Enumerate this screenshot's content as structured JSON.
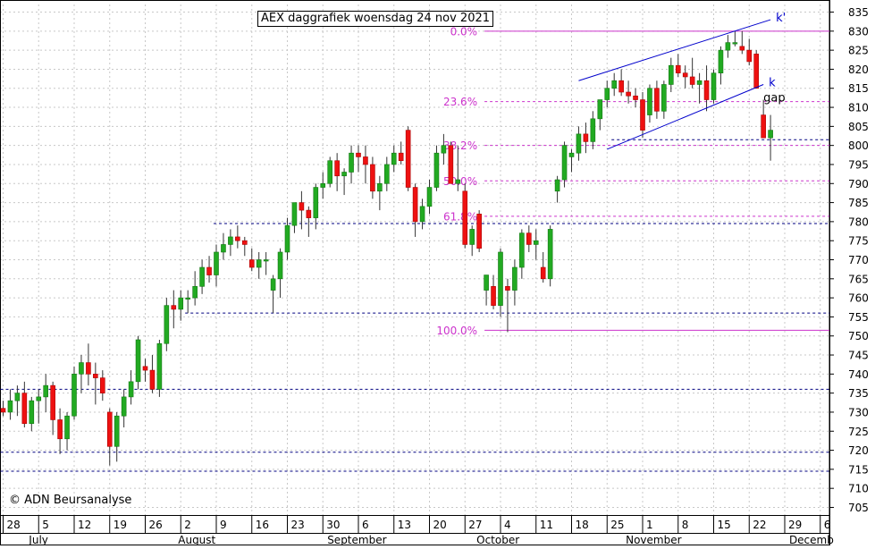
{
  "chart_data": {
    "type": "candlestick",
    "title": "AEX daggrafiek woensdag 24 nov 2021",
    "copyright": "© ADN Beursanalyse",
    "ylim": [
      703,
      837
    ],
    "y_ticks": [
      705,
      710,
      715,
      720,
      725,
      730,
      735,
      740,
      745,
      750,
      755,
      760,
      765,
      770,
      775,
      780,
      785,
      790,
      795,
      800,
      805,
      810,
      815,
      820,
      825,
      830,
      835
    ],
    "x_day_ticks": [
      {
        "label": "28",
        "index": 0
      },
      {
        "label": "5",
        "index": 5
      },
      {
        "label": "12",
        "index": 10
      },
      {
        "label": "19",
        "index": 15
      },
      {
        "label": "26",
        "index": 20
      },
      {
        "label": "2",
        "index": 25
      },
      {
        "label": "9",
        "index": 30
      },
      {
        "label": "16",
        "index": 35
      },
      {
        "label": "23",
        "index": 40
      },
      {
        "label": "30",
        "index": 45
      },
      {
        "label": "6",
        "index": 50
      },
      {
        "label": "13",
        "index": 55
      },
      {
        "label": "20",
        "index": 60
      },
      {
        "label": "27",
        "index": 65
      },
      {
        "label": "4",
        "index": 70
      },
      {
        "label": "11",
        "index": 75
      },
      {
        "label": "18",
        "index": 80
      },
      {
        "label": "25",
        "index": 85
      },
      {
        "label": "1",
        "index": 90
      },
      {
        "label": "8",
        "index": 95
      },
      {
        "label": "15",
        "index": 100
      },
      {
        "label": "22",
        "index": 105
      },
      {
        "label": "29",
        "index": 110
      },
      {
        "label": "6",
        "index": 115
      }
    ],
    "month_labels": [
      {
        "label": "July",
        "index": 4
      },
      {
        "label": "August",
        "index": 25
      },
      {
        "label": "September",
        "index": 46
      },
      {
        "label": "October",
        "index": 67
      },
      {
        "label": "November",
        "index": 88
      },
      {
        "label": "Decemb",
        "index": 111
      }
    ],
    "colors": {
      "up_fill": "#22aa22",
      "down_fill": "#ee1111",
      "up_outline": "#117711",
      "down_outline": "#aa0000",
      "fib": "#cc33cc",
      "support": "#000080",
      "trend": "#0000cc"
    },
    "candles": [
      {
        "o": 731,
        "h": 733,
        "l": 729,
        "c": 730
      },
      {
        "o": 730,
        "h": 736,
        "l": 728,
        "c": 733
      },
      {
        "o": 733,
        "h": 737,
        "l": 729,
        "c": 735
      },
      {
        "o": 735,
        "h": 738,
        "l": 726,
        "c": 727
      },
      {
        "o": 727,
        "h": 734,
        "l": 725,
        "c": 733
      },
      {
        "o": 733,
        "h": 736,
        "l": 727,
        "c": 734
      },
      {
        "o": 734,
        "h": 740,
        "l": 730,
        "c": 737
      },
      {
        "o": 737,
        "h": 738,
        "l": 724,
        "c": 728
      },
      {
        "o": 728,
        "h": 731,
        "l": 719,
        "c": 723
      },
      {
        "o": 723,
        "h": 730,
        "l": 720,
        "c": 729
      },
      {
        "o": 729,
        "h": 742,
        "l": 728,
        "c": 740
      },
      {
        "o": 740,
        "h": 745,
        "l": 735,
        "c": 743
      },
      {
        "o": 743,
        "h": 748,
        "l": 737,
        "c": 740
      },
      {
        "o": 740,
        "h": 743,
        "l": 732,
        "c": 739
      },
      {
        "o": 739,
        "h": 741,
        "l": 733,
        "c": 735
      },
      {
        "o": 730,
        "h": 731,
        "l": 716,
        "c": 721
      },
      {
        "o": 721,
        "h": 730,
        "l": 717,
        "c": 729
      },
      {
        "o": 729,
        "h": 736,
        "l": 726,
        "c": 734
      },
      {
        "o": 734,
        "h": 741,
        "l": 732,
        "c": 738
      },
      {
        "o": 738,
        "h": 750,
        "l": 736,
        "c": 749
      },
      {
        "o": 742,
        "h": 744,
        "l": 738,
        "c": 741
      },
      {
        "o": 741,
        "h": 745,
        "l": 735,
        "c": 736
      },
      {
        "o": 736,
        "h": 749,
        "l": 734,
        "c": 748
      },
      {
        "o": 748,
        "h": 760,
        "l": 746,
        "c": 758
      },
      {
        "o": 758,
        "h": 762,
        "l": 752,
        "c": 757
      },
      {
        "o": 757,
        "h": 762,
        "l": 754,
        "c": 760
      },
      {
        "o": 760,
        "h": 762,
        "l": 756,
        "c": 760
      },
      {
        "o": 760,
        "h": 767,
        "l": 758,
        "c": 763
      },
      {
        "o": 763,
        "h": 770,
        "l": 761,
        "c": 768
      },
      {
        "o": 768,
        "h": 771,
        "l": 764,
        "c": 766
      },
      {
        "o": 766,
        "h": 774,
        "l": 763,
        "c": 772
      },
      {
        "o": 772,
        "h": 777,
        "l": 770,
        "c": 774
      },
      {
        "o": 774,
        "h": 778,
        "l": 771,
        "c": 776
      },
      {
        "o": 776,
        "h": 779,
        "l": 773,
        "c": 775
      },
      {
        "o": 775,
        "h": 776,
        "l": 771,
        "c": 774
      },
      {
        "o": 770,
        "h": 773,
        "l": 767,
        "c": 768
      },
      {
        "o": 768,
        "h": 772,
        "l": 765,
        "c": 770
      },
      {
        "o": 770,
        "h": 772,
        "l": 766,
        "c": 770
      },
      {
        "o": 762,
        "h": 766,
        "l": 756,
        "c": 765
      },
      {
        "o": 765,
        "h": 773,
        "l": 760,
        "c": 772
      },
      {
        "o": 772,
        "h": 781,
        "l": 770,
        "c": 779
      },
      {
        "o": 779,
        "h": 785,
        "l": 777,
        "c": 785
      },
      {
        "o": 785,
        "h": 788,
        "l": 778,
        "c": 783
      },
      {
        "o": 783,
        "h": 784,
        "l": 776,
        "c": 781
      },
      {
        "o": 781,
        "h": 790,
        "l": 778,
        "c": 789
      },
      {
        "o": 789,
        "h": 793,
        "l": 786,
        "c": 790
      },
      {
        "o": 790,
        "h": 797,
        "l": 789,
        "c": 796
      },
      {
        "o": 796,
        "h": 798,
        "l": 788,
        "c": 792
      },
      {
        "o": 792,
        "h": 794,
        "l": 787,
        "c": 793
      },
      {
        "o": 793,
        "h": 800,
        "l": 790,
        "c": 798
      },
      {
        "o": 798,
        "h": 800,
        "l": 793,
        "c": 797
      },
      {
        "o": 797,
        "h": 800,
        "l": 790,
        "c": 795
      },
      {
        "o": 795,
        "h": 797,
        "l": 786,
        "c": 788
      },
      {
        "o": 788,
        "h": 792,
        "l": 783,
        "c": 790
      },
      {
        "o": 790,
        "h": 797,
        "l": 788,
        "c": 795
      },
      {
        "o": 795,
        "h": 800,
        "l": 793,
        "c": 798
      },
      {
        "o": 798,
        "h": 801,
        "l": 795,
        "c": 796
      },
      {
        "o": 804,
        "h": 805,
        "l": 788,
        "c": 789
      },
      {
        "o": 789,
        "h": 790,
        "l": 776,
        "c": 780
      },
      {
        "o": 780,
        "h": 786,
        "l": 778,
        "c": 784
      },
      {
        "o": 784,
        "h": 791,
        "l": 782,
        "c": 789
      },
      {
        "o": 789,
        "h": 800,
        "l": 788,
        "c": 798
      },
      {
        "o": 798,
        "h": 803,
        "l": 795,
        "c": 800
      },
      {
        "o": 800,
        "h": 801,
        "l": 790,
        "c": 790
      },
      {
        "o": 790,
        "h": 800,
        "l": 788,
        "c": 791
      },
      {
        "o": 788,
        "h": 790,
        "l": 773,
        "c": 774
      },
      {
        "o": 774,
        "h": 779,
        "l": 771,
        "c": 778
      },
      {
        "o": 782,
        "h": 783,
        "l": 772,
        "c": 773
      },
      {
        "o": 762,
        "h": 766,
        "l": 758,
        "c": 766
      },
      {
        "o": 763,
        "h": 766,
        "l": 757,
        "c": 758
      },
      {
        "o": 758,
        "h": 773,
        "l": 755,
        "c": 772
      },
      {
        "o": 763,
        "h": 765,
        "l": 751,
        "c": 762
      },
      {
        "o": 762,
        "h": 770,
        "l": 758,
        "c": 768
      },
      {
        "o": 768,
        "h": 778,
        "l": 765,
        "c": 777
      },
      {
        "o": 777,
        "h": 779,
        "l": 772,
        "c": 774
      },
      {
        "o": 774,
        "h": 778,
        "l": 770,
        "c": 775
      },
      {
        "o": 768,
        "h": 772,
        "l": 764,
        "c": 765
      },
      {
        "o": 765,
        "h": 779,
        "l": 763,
        "c": 778
      },
      {
        "o": 788,
        "h": 792,
        "l": 785,
        "c": 791
      },
      {
        "o": 791,
        "h": 801,
        "l": 789,
        "c": 800
      },
      {
        "o": 797,
        "h": 799,
        "l": 793,
        "c": 798
      },
      {
        "o": 798,
        "h": 805,
        "l": 796,
        "c": 803
      },
      {
        "o": 803,
        "h": 806,
        "l": 798,
        "c": 801
      },
      {
        "o": 801,
        "h": 809,
        "l": 799,
        "c": 807
      },
      {
        "o": 807,
        "h": 812,
        "l": 804,
        "c": 812
      },
      {
        "o": 812,
        "h": 817,
        "l": 810,
        "c": 815
      },
      {
        "o": 815,
        "h": 819,
        "l": 813,
        "c": 817
      },
      {
        "o": 817,
        "h": 820,
        "l": 813,
        "c": 814
      },
      {
        "o": 814,
        "h": 817,
        "l": 811,
        "c": 813
      },
      {
        "o": 813,
        "h": 815,
        "l": 810,
        "c": 812
      },
      {
        "o": 812,
        "h": 814,
        "l": 802,
        "c": 804
      },
      {
        "o": 808,
        "h": 816,
        "l": 806,
        "c": 815
      },
      {
        "o": 815,
        "h": 817,
        "l": 807,
        "c": 809
      },
      {
        "o": 809,
        "h": 817,
        "l": 807,
        "c": 816
      },
      {
        "o": 816,
        "h": 823,
        "l": 814,
        "c": 821
      },
      {
        "o": 821,
        "h": 824,
        "l": 818,
        "c": 819
      },
      {
        "o": 819,
        "h": 821,
        "l": 815,
        "c": 818
      },
      {
        "o": 818,
        "h": 823,
        "l": 815,
        "c": 816
      },
      {
        "o": 816,
        "h": 819,
        "l": 811,
        "c": 817
      },
      {
        "o": 817,
        "h": 821,
        "l": 809,
        "c": 812
      },
      {
        "o": 812,
        "h": 820,
        "l": 811,
        "c": 819
      },
      {
        "o": 819,
        "h": 826,
        "l": 816,
        "c": 825
      },
      {
        "o": 825,
        "h": 829,
        "l": 823,
        "c": 827
      },
      {
        "o": 827,
        "h": 830,
        "l": 826,
        "c": 827
      },
      {
        "o": 826,
        "h": 830,
        "l": 824,
        "c": 825
      },
      {
        "o": 825,
        "h": 828,
        "l": 821,
        "c": 822
      },
      {
        "o": 824,
        "h": 825,
        "l": 815,
        "c": 815
      },
      {
        "o": 808,
        "h": 812,
        "l": 802,
        "c": 802
      },
      {
        "o": 802,
        "h": 808,
        "l": 796,
        "c": 804
      }
    ],
    "fib_levels": [
      {
        "label": "0.0%",
        "value": 830.0
      },
      {
        "label": "23.6%",
        "value": 811.5
      },
      {
        "label": "38.2%",
        "value": 800.0
      },
      {
        "label": "50.0%",
        "value": 790.7
      },
      {
        "label": "61.8%",
        "value": 781.4
      },
      {
        "label": "100.0%",
        "value": 751.5
      }
    ],
    "support_lines": [
      {
        "value": 801.5,
        "from": 86,
        "to": 115
      },
      {
        "value": 779.5,
        "from": 30,
        "to": 115
      },
      {
        "value": 756.0,
        "from": 26,
        "to": 115
      },
      {
        "value": 736.0,
        "from": 0,
        "to": 115
      },
      {
        "value": 719.5,
        "from": 0,
        "to": 115
      },
      {
        "value": 714.5,
        "from": 0,
        "to": 115
      }
    ],
    "trend_lines": [
      {
        "label": "k'",
        "x1": 81,
        "y1": 817,
        "x2": 108,
        "y2": 833
      },
      {
        "label": "k",
        "x1": 85,
        "y1": 799,
        "x2": 107,
        "y2": 816
      }
    ],
    "annotations": [
      {
        "text": "gap",
        "index": 107,
        "value": 812
      }
    ]
  }
}
